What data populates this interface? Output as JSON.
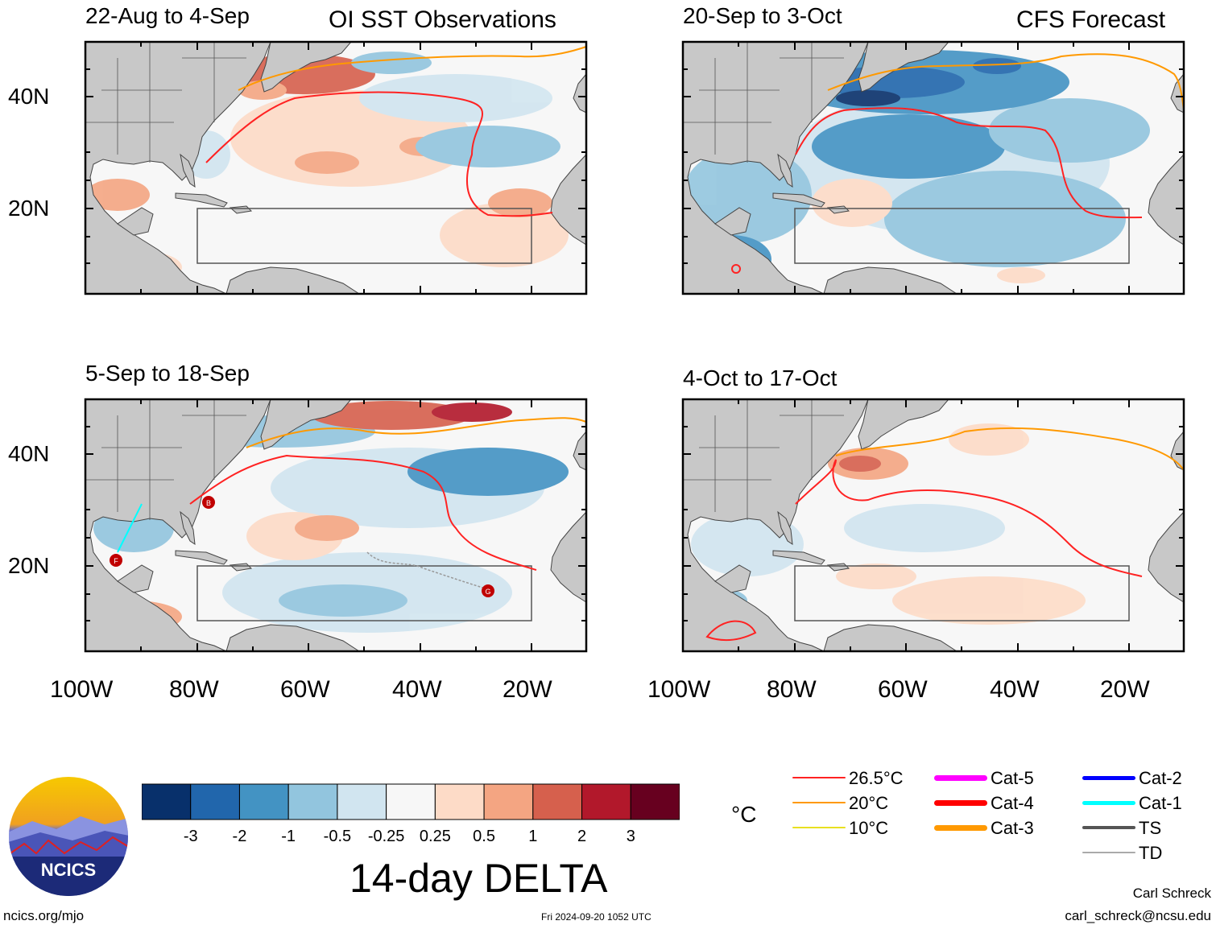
{
  "panels": {
    "top_left": {
      "date_range": "22-Aug to 4-Sep",
      "header": "OI SST Observations"
    },
    "top_right": {
      "date_range": "20-Sep to 3-Oct",
      "header": "CFS Forecast"
    },
    "bottom_left": {
      "date_range": "5-Sep to 18-Sep"
    },
    "bottom_right": {
      "date_range": "4-Oct to 17-Oct"
    }
  },
  "axes": {
    "lat_labels": [
      "40N",
      "20N"
    ],
    "lon_labels": [
      "100W",
      "80W",
      "60W",
      "40W",
      "20W"
    ]
  },
  "storm_markers": [
    "B",
    "F",
    "G"
  ],
  "colorbar": {
    "title": "14-day DELTA",
    "ticks": [
      "-3",
      "-2",
      "-1",
      "-0.5",
      "-0.25",
      "0.25",
      "0.5",
      "1",
      "2",
      "3"
    ],
    "colors": [
      "#08306b",
      "#2166ac",
      "#4393c3",
      "#92c5de",
      "#d1e5f0",
      "#f7f7f7",
      "#fddbc7",
      "#f4a582",
      "#d6604d",
      "#b2182b",
      "#67001f"
    ]
  },
  "legend": {
    "unit": "°C",
    "isotherms": [
      {
        "label": "26.5°C",
        "color": "#ff2222"
      },
      {
        "label": "20°C",
        "color": "#ff9900"
      },
      {
        "label": "10°C",
        "color": "#e8e020"
      }
    ],
    "storm_categories": [
      {
        "label": "Cat-5",
        "color": "#ff00ff"
      },
      {
        "label": "Cat-4",
        "color": "#ff0000"
      },
      {
        "label": "Cat-3",
        "color": "#ff9900"
      },
      {
        "label": "Cat-2",
        "color": "#0000ff"
      },
      {
        "label": "Cat-1",
        "color": "#00ffff"
      },
      {
        "label": "TS",
        "color": "#555555"
      },
      {
        "label": "TD",
        "color": "#aaaaaa"
      }
    ]
  },
  "logo": {
    "text": "NCICS"
  },
  "footer": {
    "url": "ncics.org/mjo",
    "timestamp": "Fri 2024-09-20 1052 UTC",
    "author": "Carl Schreck",
    "email": "carl_schreck@ncsu.edu"
  }
}
